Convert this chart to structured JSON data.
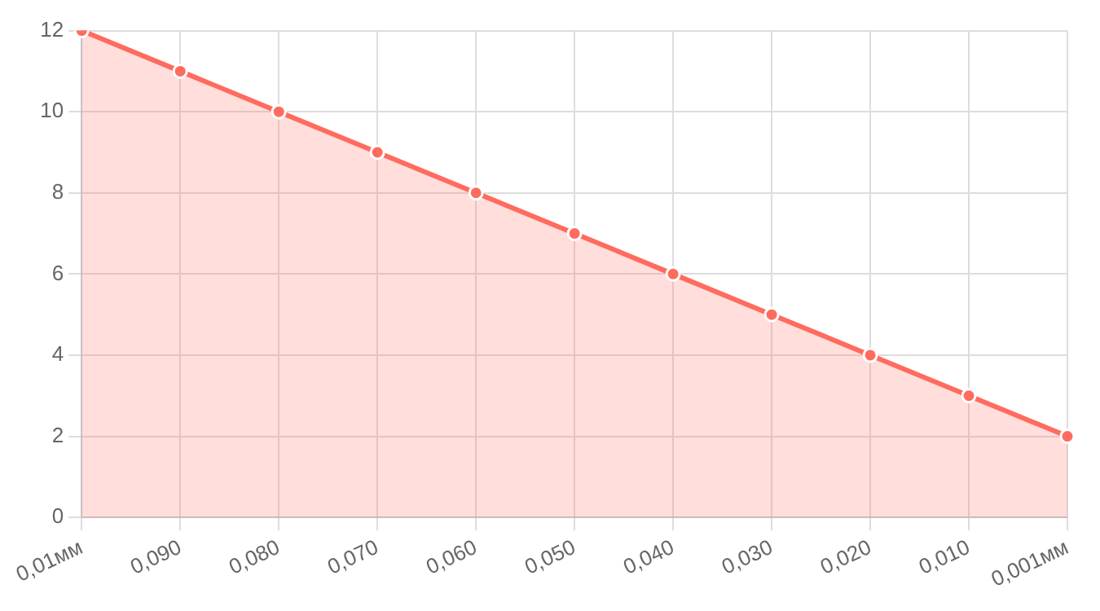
{
  "chart_data": {
    "type": "area",
    "categories": [
      "0,01мм",
      "0,090",
      "0,080",
      "0,070",
      "0,060",
      "0,050",
      "0,040",
      "0,030",
      "0,020",
      "0,010",
      "0,001мм"
    ],
    "series": [
      {
        "color": "#ff6b5e",
        "values": [
          12,
          11,
          10,
          9,
          8,
          7,
          6,
          5,
          4,
          3,
          2
        ]
      }
    ],
    "ylim": [
      0,
      12
    ],
    "yticks": [
      0,
      2,
      4,
      6,
      8,
      10,
      12
    ],
    "grid": true,
    "legend": false,
    "marker": "circle",
    "line_style": "solid"
  }
}
